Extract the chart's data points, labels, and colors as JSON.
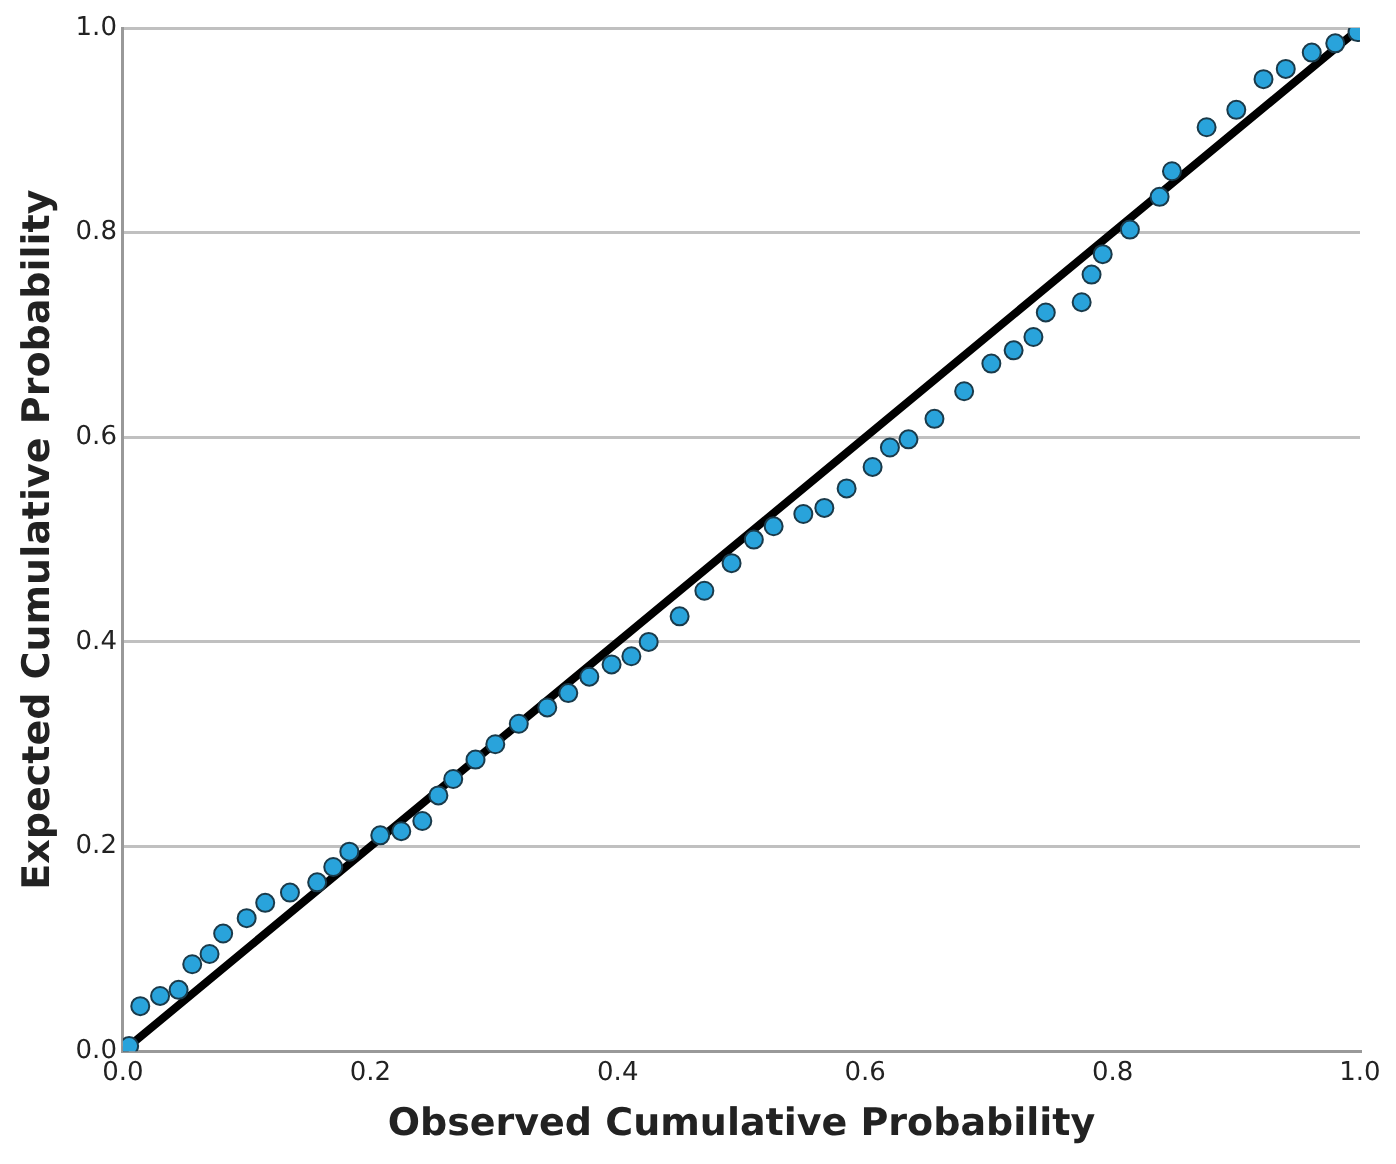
{
  "chart_data": {
    "type": "scatter",
    "xlabel": "Observed Cumulative Probability",
    "ylabel": "Expected Cumulative Probability",
    "xlim": [
      0,
      1
    ],
    "ylim": [
      0,
      1
    ],
    "xticks": [
      {
        "value": 0,
        "label": "0.0"
      },
      {
        "value": 0.2,
        "label": "0.2"
      },
      {
        "value": 0.4,
        "label": "0.4"
      },
      {
        "value": 0.6,
        "label": "0.6"
      },
      {
        "value": 0.8,
        "label": "0.8"
      },
      {
        "value": 1,
        "label": "1.0"
      }
    ],
    "yticks": [
      {
        "value": 0,
        "label": "0.0"
      },
      {
        "value": 0.2,
        "label": "0.2"
      },
      {
        "value": 0.4,
        "label": "0.4"
      },
      {
        "value": 0.6,
        "label": "0.6"
      },
      {
        "value": 0.8,
        "label": "0.8"
      },
      {
        "value": 1,
        "label": "1.0"
      }
    ],
    "grid": "y",
    "legend": false,
    "marker": "circle",
    "series": [
      {
        "color": "#29a3db",
        "x": [
          0.005,
          0.014,
          0.03,
          0.045,
          0.056,
          0.07,
          0.081,
          0.1,
          0.115,
          0.135,
          0.157,
          0.17,
          0.183,
          0.208,
          0.225,
          0.242,
          0.255,
          0.267,
          0.285,
          0.301,
          0.32,
          0.343,
          0.36,
          0.377,
          0.395,
          0.411,
          0.425,
          0.45,
          0.47,
          0.492,
          0.51,
          0.526,
          0.55,
          0.567,
          0.585,
          0.606,
          0.62,
          0.635,
          0.656,
          0.68,
          0.702,
          0.72,
          0.736,
          0.746,
          0.775,
          0.783,
          0.792,
          0.814,
          0.838,
          0.848,
          0.876,
          0.9,
          0.922,
          0.94,
          0.961,
          0.98,
          0.998
        ],
        "values": [
          0.005,
          0.044,
          0.054,
          0.06,
          0.085,
          0.095,
          0.115,
          0.13,
          0.145,
          0.155,
          0.165,
          0.18,
          0.195,
          0.211,
          0.215,
          0.225,
          0.25,
          0.266,
          0.285,
          0.3,
          0.32,
          0.336,
          0.35,
          0.366,
          0.378,
          0.386,
          0.4,
          0.425,
          0.45,
          0.477,
          0.5,
          0.513,
          0.525,
          0.531,
          0.55,
          0.571,
          0.59,
          0.598,
          0.618,
          0.645,
          0.672,
          0.685,
          0.698,
          0.722,
          0.732,
          0.759,
          0.779,
          0.803,
          0.835,
          0.86,
          0.903,
          0.92,
          0.95,
          0.96,
          0.976,
          0.985,
          0.996
        ]
      },
      {
        "type": "line",
        "color": "#000000",
        "line_style": "solid",
        "marker": "none",
        "x": [
          0,
          1
        ],
        "values": [
          0,
          1
        ]
      }
    ]
  }
}
